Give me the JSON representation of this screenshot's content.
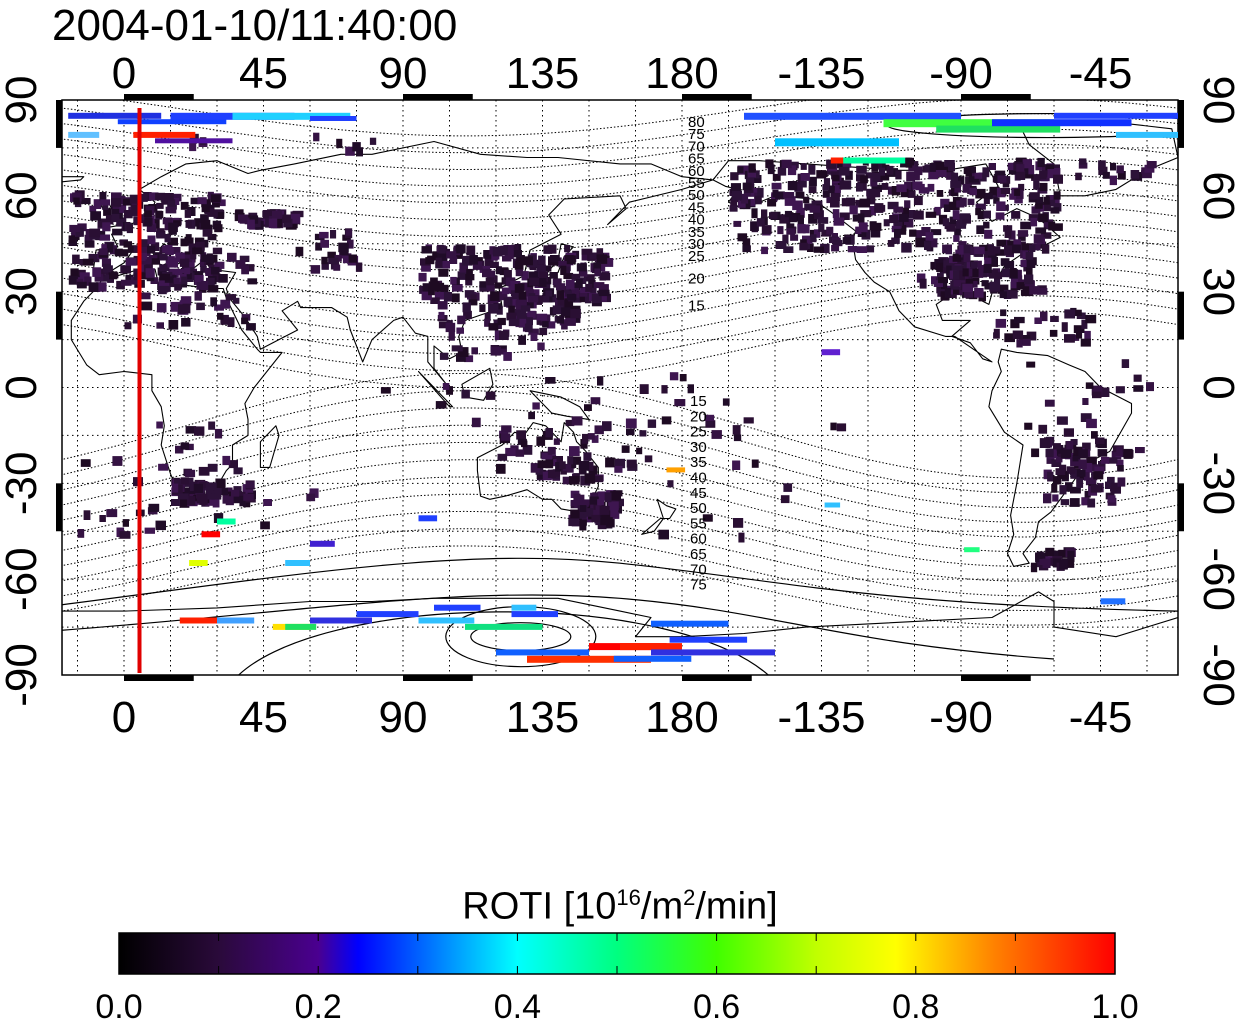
{
  "timestamp": "2004-01-10/11:40:00",
  "map": {
    "x_ticks": [
      "0",
      "45",
      "90",
      "135",
      "180",
      "-135",
      "-90",
      "-45"
    ],
    "x_tick_lon": [
      0,
      45,
      90,
      135,
      180,
      225,
      270,
      315
    ],
    "lon_range": [
      -20,
      340
    ],
    "lat_range": [
      -90,
      90
    ],
    "y_ticks": [
      "90",
      "60",
      "30",
      "0",
      "-30",
      "-60",
      "-90"
    ],
    "y_tick_lat": [
      90,
      60,
      30,
      0,
      -30,
      -60,
      -90
    ],
    "grid": "dotted, 15 deg",
    "marker_longitude": 5,
    "marker_color": "#e00000",
    "north_contour_labels": [
      "80",
      "75",
      "70",
      "65",
      "60",
      "55",
      "50",
      "45",
      "40",
      "35",
      "30",
      "25",
      "20",
      "15"
    ],
    "south_contour_labels": [
      "15",
      "20",
      "25",
      "30",
      "35",
      "40",
      "45",
      "50",
      "55",
      "60",
      "65",
      "70",
      "75"
    ]
  },
  "colorbar": {
    "title_main": "ROTI  [10",
    "title_sup1": "16",
    "title_mid": "/m",
    "title_sup2": "2",
    "title_end": "/min]",
    "ticks": [
      "0.0",
      "0.2",
      "0.4",
      "0.6",
      "0.8",
      "1.0"
    ],
    "range": [
      0,
      1
    ]
  }
}
